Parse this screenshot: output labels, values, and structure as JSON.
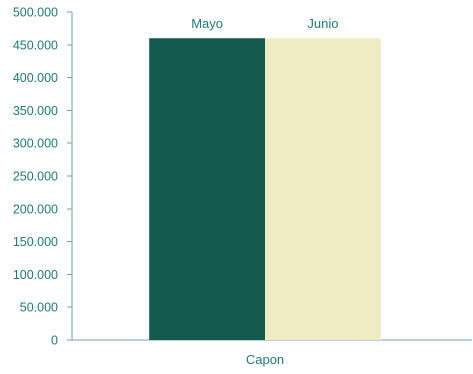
{
  "chart_data": {
    "type": "bar",
    "categories": [
      "Capon"
    ],
    "series": [
      {
        "name": "Mayo",
        "values": [
          460000
        ],
        "color": "#145a4e"
      },
      {
        "name": "Junio",
        "values": [
          460000
        ],
        "color": "#efecc4"
      }
    ],
    "title": "",
    "xlabel": "",
    "ylabel": "",
    "ylim": [
      0,
      500000
    ],
    "y_ticks": [
      "0",
      "50.000",
      "100.000",
      "150.000",
      "200.000",
      "250.000",
      "300.000",
      "350.000",
      "400.000",
      "450.000",
      "500.000"
    ],
    "grid": false,
    "legend": "series labels above bars",
    "colors": {
      "text": "#1f7a72",
      "axis": "#6fa5a0"
    }
  }
}
